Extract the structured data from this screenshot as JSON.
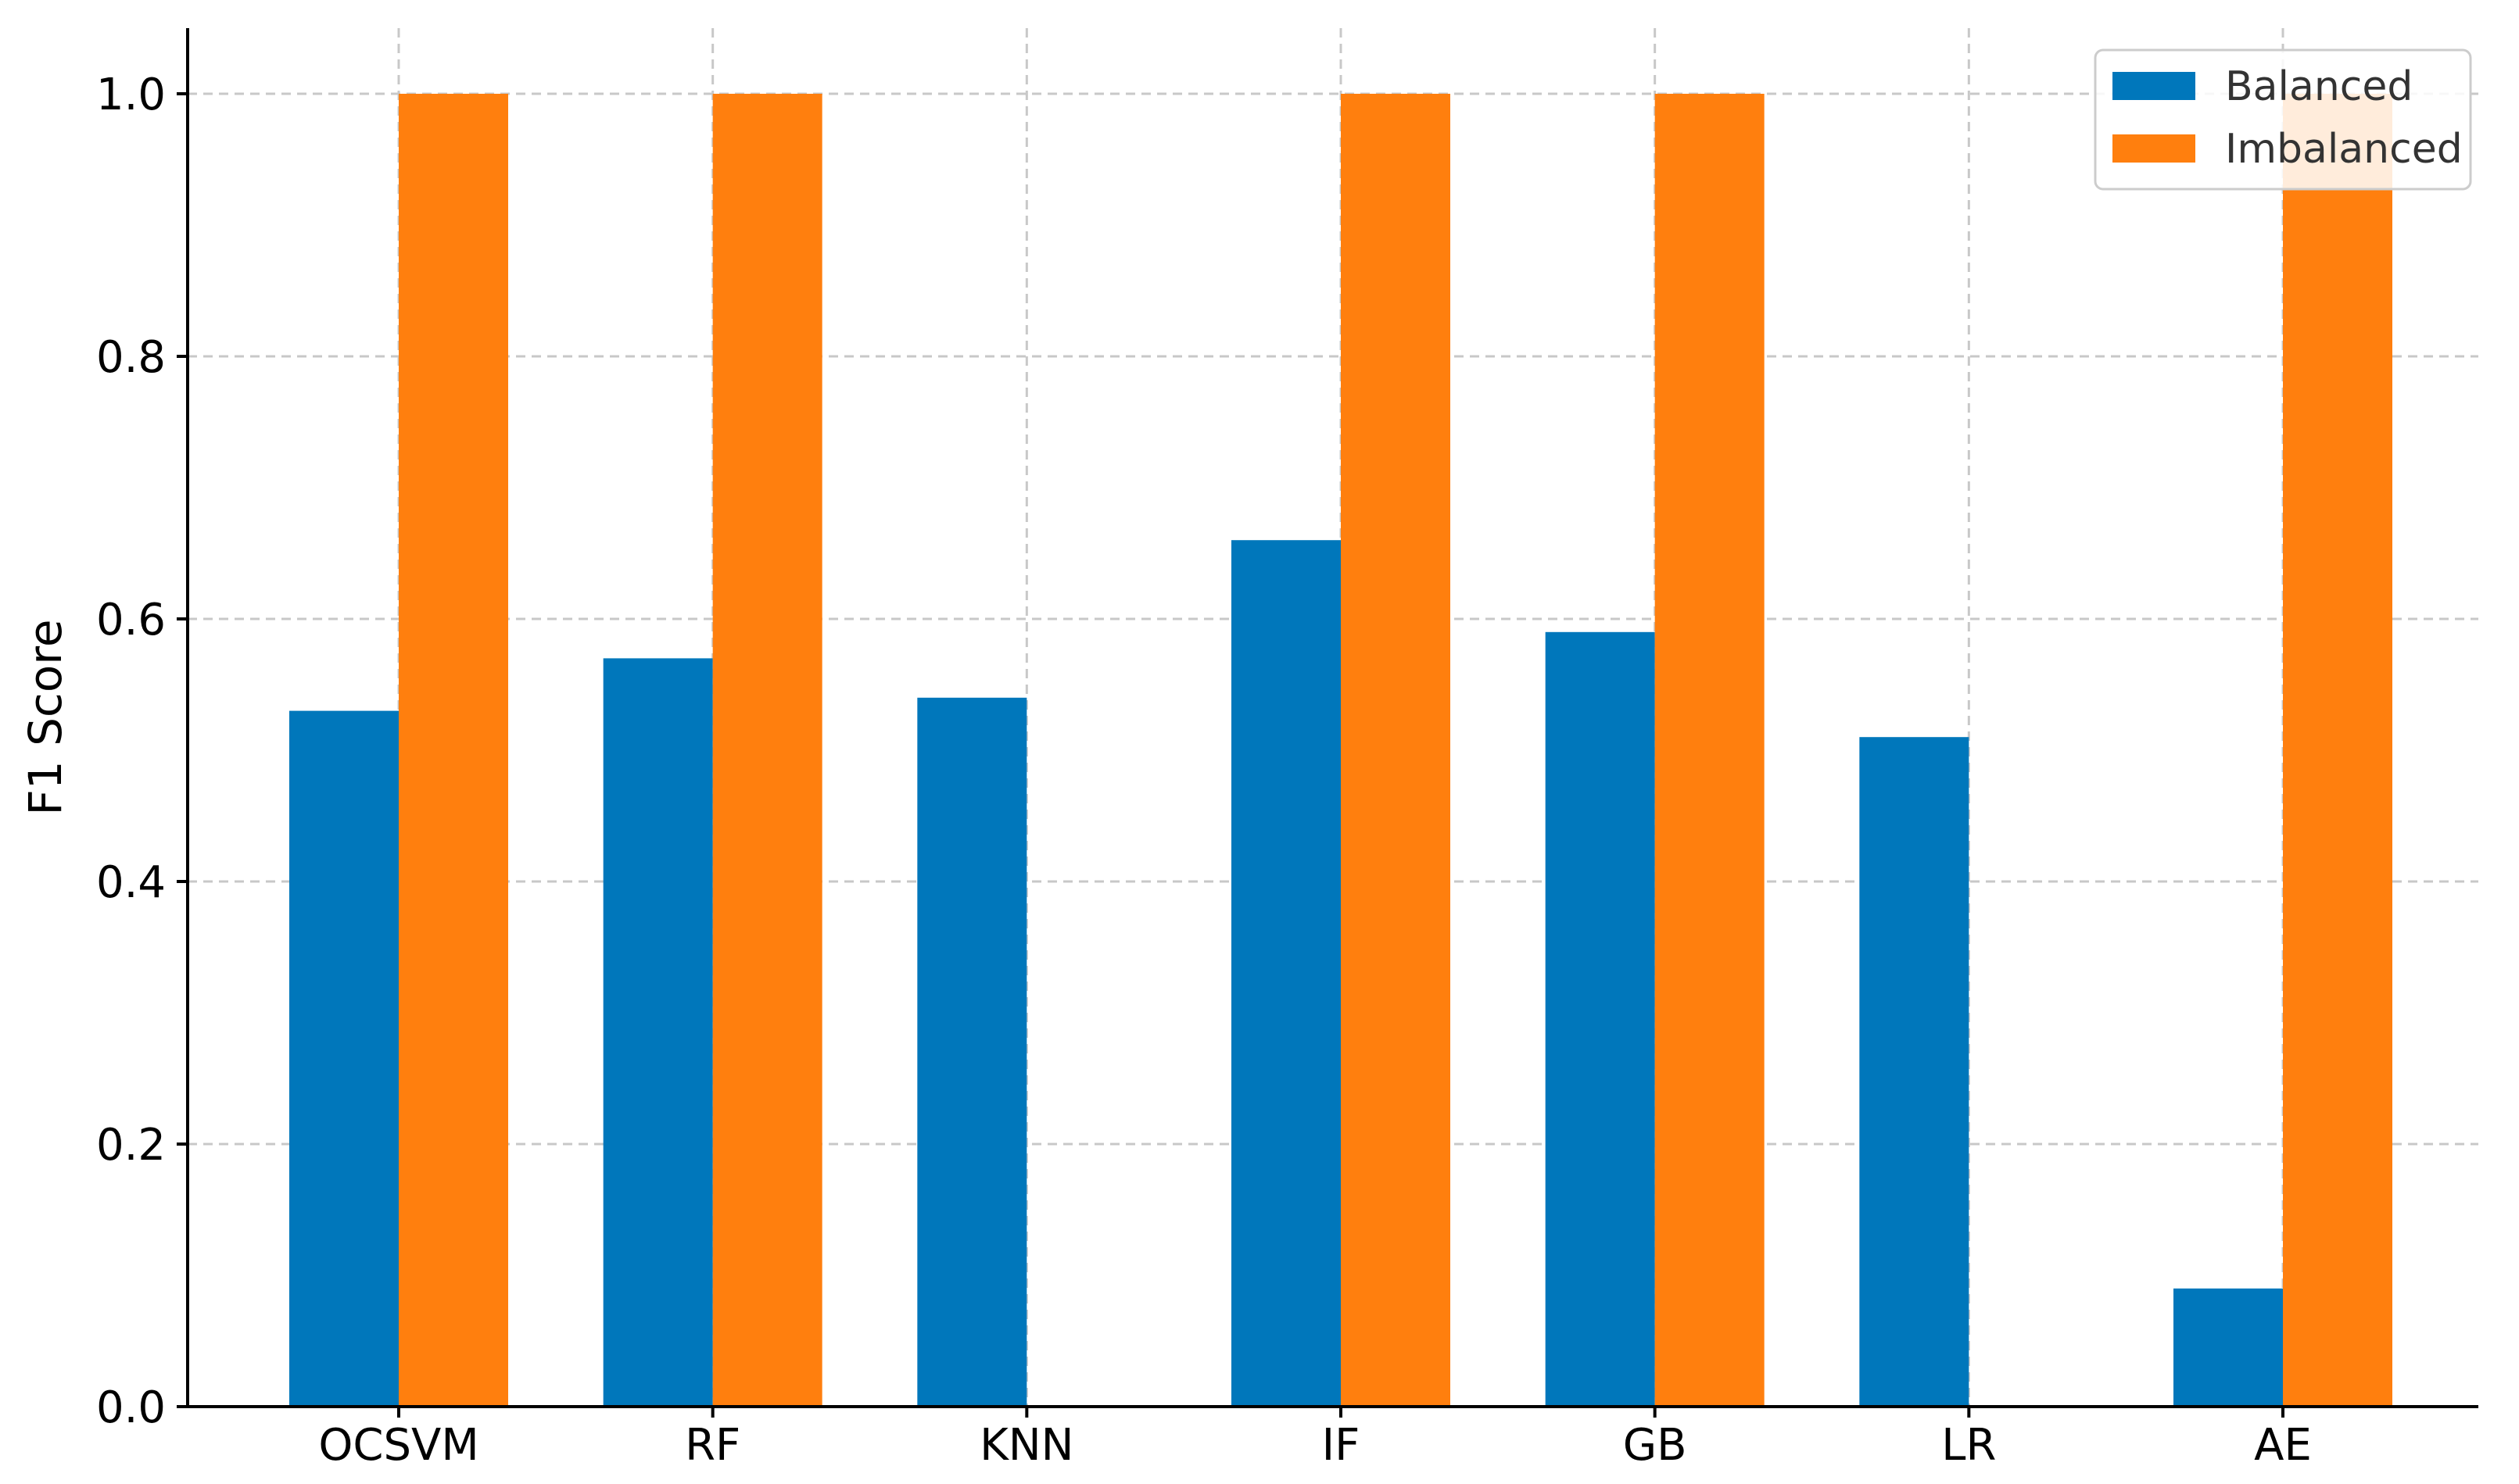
{
  "chart_data": {
    "type": "bar",
    "title": "",
    "xlabel": "",
    "ylabel": "F1 Score",
    "categories": [
      "OCSVM",
      "RF",
      "KNN",
      "IF",
      "GB",
      "LR",
      "AE"
    ],
    "series": [
      {
        "name": "Balanced",
        "color": "#0077bb",
        "values": [
          0.53,
          0.57,
          0.54,
          0.66,
          0.59,
          0.51,
          0.09
        ]
      },
      {
        "name": "Imbalanced",
        "color": "#ff7f0e",
        "values": [
          1.0,
          1.0,
          0.0,
          1.0,
          1.0,
          0.0,
          1.0
        ]
      }
    ],
    "ylim": [
      0,
      1.05
    ],
    "yticks": [
      "0.0",
      "0.2",
      "0.4",
      "0.6",
      "0.8",
      "1.0"
    ],
    "grid": true,
    "legend": "top-right"
  }
}
